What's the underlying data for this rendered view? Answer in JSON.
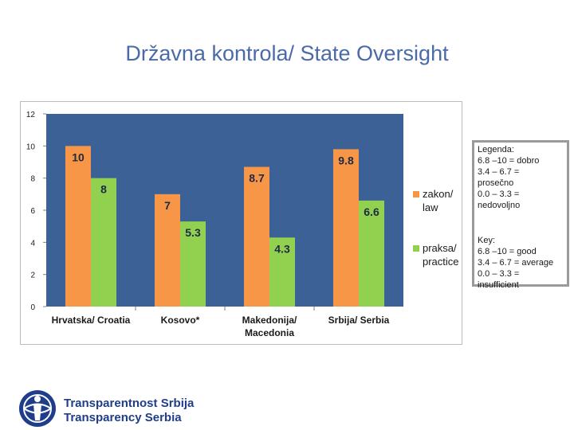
{
  "page": {
    "title": "Državna kontrola/ State Oversight"
  },
  "colors": {
    "plot_bg": "#3c6196",
    "law": "#f79646",
    "practice": "#92d050",
    "title": "#4a6aa8",
    "logo": "#1f3d8a"
  },
  "chart_data": {
    "type": "bar",
    "title": "",
    "xlabel": "",
    "ylabel": "",
    "ylim": [
      0,
      12
    ],
    "yticks": [
      "0",
      "2",
      "4",
      "6",
      "8",
      "10",
      "12"
    ],
    "categories": [
      [
        "Hrvatska/ Croatia"
      ],
      [
        "Kosovo*"
      ],
      [
        "Makedonija/",
        "Macedonia"
      ],
      [
        "Srbija/ Serbia"
      ]
    ],
    "series": [
      {
        "name": [
          "zakon/",
          "law"
        ],
        "values": [
          10,
          7,
          8.7,
          9.8
        ],
        "labels": [
          "10",
          "7",
          "8.7",
          "9.8"
        ]
      },
      {
        "name": [
          "praksa/",
          "practice"
        ],
        "values": [
          8,
          5.3,
          4.3,
          6.6
        ],
        "labels": [
          "8",
          "5.3",
          "4.3",
          "6.6"
        ]
      }
    ],
    "legend_position": "right"
  },
  "legend_box": {
    "lines_sr": [
      "Legenda:",
      "6.8 –10 = dobro",
      "3.4 – 6.7 =",
      "prosečno",
      "0.0 – 3.3 =",
      "nedovoljno"
    ],
    "lines_en": [
      "Key:",
      "6.8 –10 = good",
      "3.4 – 6.7 = average",
      "0.0 – 3.3 =",
      "insufficient"
    ]
  },
  "logo": {
    "line1": "Transparentnost Srbija",
    "line2": "Transparency Serbia",
    "icon": "transparency-globe-icon"
  }
}
